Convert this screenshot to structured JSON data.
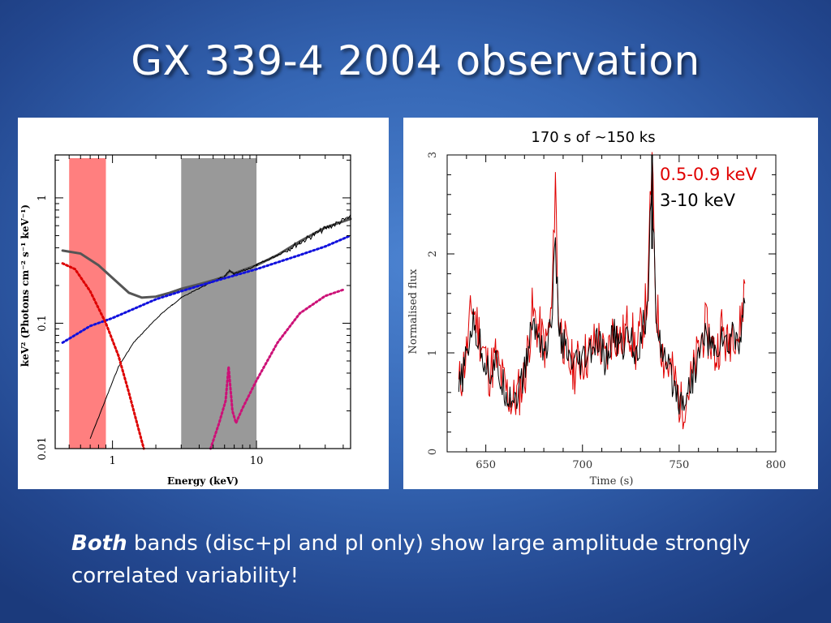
{
  "slide": {
    "title": "GX 339-4 2004 observation",
    "caption_emph": "Both",
    "caption_rest": " bands (disc+pl and pl only) show large amplitude strongly correlated variability!"
  },
  "chart_data": [
    {
      "type": "line",
      "xlabel": "Energy (keV)",
      "ylabel": "keV² (Photons cm⁻² s⁻¹ keV⁻¹)",
      "xscale": "log",
      "yscale": "log",
      "xlim": [
        0.4,
        45
      ],
      "ylim": [
        0.01,
        2.2
      ],
      "x_ticks": [
        "1",
        "10"
      ],
      "y_ticks": [
        "0.01",
        "0.1",
        "1"
      ],
      "shaded_bands": [
        {
          "x": [
            0.5,
            0.9
          ],
          "color": "#ff7f7f"
        },
        {
          "x": [
            3,
            10
          ],
          "color": "#999999"
        }
      ],
      "series": [
        {
          "color": "#555555",
          "style": "solid",
          "x": [
            0.45,
            0.6,
            0.8,
            1.0,
            1.3,
            1.6,
            2.0,
            2.5,
            3,
            4,
            5,
            6,
            6.5,
            7,
            8,
            10,
            14,
            20,
            30,
            45
          ],
          "y": [
            0.38,
            0.36,
            0.29,
            0.23,
            0.175,
            0.16,
            0.163,
            0.175,
            0.188,
            0.205,
            0.22,
            0.235,
            0.26,
            0.25,
            0.265,
            0.29,
            0.35,
            0.45,
            0.58,
            0.68
          ]
        },
        {
          "color": "#000000",
          "style": "data",
          "x": [
            0.7,
            0.9,
            1.1,
            1.4,
            1.8,
            2.2,
            2.6,
            3,
            4,
            5,
            6,
            6.5,
            7,
            8,
            10,
            14,
            20,
            30,
            45
          ],
          "y": [
            0.012,
            0.025,
            0.045,
            0.07,
            0.095,
            0.12,
            0.14,
            0.16,
            0.19,
            0.215,
            0.235,
            0.26,
            0.245,
            0.26,
            0.29,
            0.35,
            0.44,
            0.57,
            0.7
          ]
        },
        {
          "color": "#1111dd",
          "style": "dotted",
          "x": [
            0.45,
            0.7,
            1,
            2,
            3,
            5,
            10,
            20,
            30,
            45
          ],
          "y": [
            0.07,
            0.095,
            0.11,
            0.155,
            0.18,
            0.215,
            0.27,
            0.35,
            0.41,
            0.5
          ]
        },
        {
          "color": "#dd0000",
          "style": "dotted",
          "x": [
            0.45,
            0.55,
            0.7,
            0.9,
            1.1,
            1.3,
            1.5,
            1.65
          ],
          "y": [
            0.3,
            0.27,
            0.18,
            0.1,
            0.055,
            0.028,
            0.015,
            0.01
          ]
        },
        {
          "color": "#cc1177",
          "style": "dotted",
          "x": [
            4.8,
            5.5,
            6.1,
            6.4,
            6.8,
            7.2,
            8,
            10,
            14,
            20,
            30,
            40
          ],
          "y": [
            0.01,
            0.016,
            0.024,
            0.045,
            0.02,
            0.016,
            0.021,
            0.035,
            0.07,
            0.12,
            0.165,
            0.185
          ]
        }
      ]
    },
    {
      "type": "line",
      "title": "170 s of ~150 ks",
      "xlabel": "Time (s)",
      "ylabel": "Normalised flux",
      "xlim": [
        630,
        800
      ],
      "ylim": [
        0,
        3
      ],
      "x_ticks": [
        "650",
        "700",
        "750",
        "800"
      ],
      "y_ticks": [
        "0",
        "1",
        "2",
        "3"
      ],
      "series": [
        {
          "name": "0.5-0.9 keV",
          "color": "#e00000",
          "x": [
            636,
            640,
            643,
            646,
            649,
            652,
            655,
            658,
            661,
            664,
            667,
            670,
            674,
            678,
            681,
            684,
            685,
            686,
            687,
            688,
            690,
            693,
            696,
            700,
            704,
            708,
            712,
            716,
            720,
            724,
            728,
            732,
            734,
            735,
            736,
            737,
            738,
            740,
            742,
            745,
            748,
            751,
            754,
            757,
            760,
            763,
            766,
            769,
            772,
            775,
            778,
            781,
            784
          ],
          "y": [
            0.65,
            1.0,
            1.5,
            1.25,
            1.0,
            0.8,
            0.95,
            0.75,
            0.6,
            0.5,
            0.6,
            0.75,
            1.4,
            1.2,
            1.05,
            1.4,
            2.0,
            2.9,
            1.7,
            1.3,
            1.15,
            0.9,
            0.85,
            0.95,
            1.0,
            1.15,
            0.9,
            1.25,
            1.1,
            1.3,
            1.0,
            1.4,
            1.6,
            2.5,
            2.9,
            2.2,
            1.5,
            1.2,
            0.95,
            0.85,
            0.7,
            0.45,
            0.6,
            0.75,
            1.0,
            1.25,
            1.15,
            0.95,
            1.25,
            1.05,
            1.3,
            1.15,
            1.7
          ]
        },
        {
          "name": "3-10 keV",
          "color": "#000000",
          "x": [
            636,
            640,
            643,
            646,
            649,
            652,
            655,
            658,
            661,
            664,
            667,
            670,
            674,
            678,
            681,
            684,
            685,
            686,
            687,
            688,
            690,
            693,
            696,
            700,
            704,
            708,
            712,
            716,
            720,
            724,
            728,
            732,
            734,
            735,
            736,
            737,
            738,
            740,
            742,
            745,
            748,
            751,
            754,
            757,
            760,
            763,
            766,
            769,
            772,
            775,
            778,
            781,
            784
          ],
          "y": [
            0.6,
            0.95,
            1.3,
            1.15,
            0.95,
            0.8,
            0.9,
            0.7,
            0.6,
            0.55,
            0.6,
            0.8,
            1.3,
            1.15,
            1.0,
            1.3,
            1.8,
            2.0,
            1.6,
            1.2,
            1.1,
            0.9,
            0.85,
            0.9,
            1.0,
            1.1,
            0.9,
            1.2,
            1.05,
            1.2,
            1.0,
            1.3,
            1.5,
            2.3,
            2.6,
            2.1,
            1.4,
            1.15,
            0.9,
            0.8,
            0.65,
            0.5,
            0.6,
            0.75,
            0.95,
            1.2,
            1.1,
            0.95,
            1.2,
            1.0,
            1.25,
            1.1,
            1.5
          ]
        }
      ]
    }
  ]
}
